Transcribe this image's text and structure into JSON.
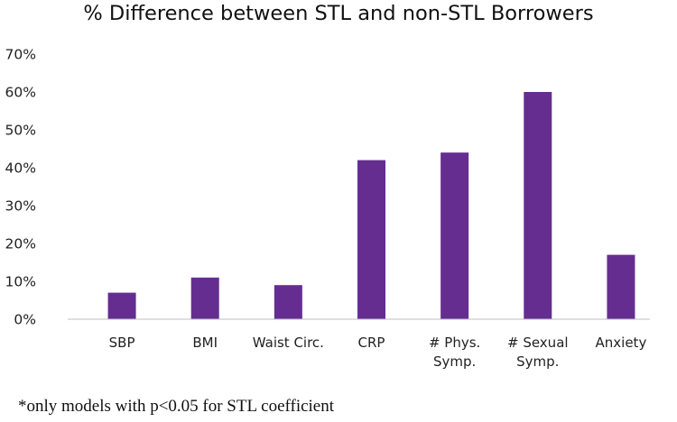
{
  "chart_data": {
    "type": "bar",
    "title": "% Difference between STL and non-STL Borrowers",
    "categories": [
      [
        "SBP"
      ],
      [
        "BMI"
      ],
      [
        "Waist Circ."
      ],
      [
        "CRP"
      ],
      [
        "# Phys.",
        "Symp."
      ],
      [
        "# Sexual",
        "Symp."
      ],
      [
        "Anxiety"
      ]
    ],
    "values": [
      7,
      11,
      9,
      42,
      44,
      60,
      17
    ],
    "ylim": [
      0,
      70
    ],
    "yticks": [
      0,
      10,
      20,
      30,
      40,
      50,
      60,
      70
    ],
    "ytick_labels": [
      "0%",
      "10%",
      "20%",
      "30%",
      "40%",
      "50%",
      "60%",
      "70%"
    ],
    "xlabel": "",
    "ylabel": "",
    "grid": false,
    "legend": "none",
    "bar_color": "#662D91"
  },
  "footnote": "*only models with p<0.05 for STL coefficient"
}
